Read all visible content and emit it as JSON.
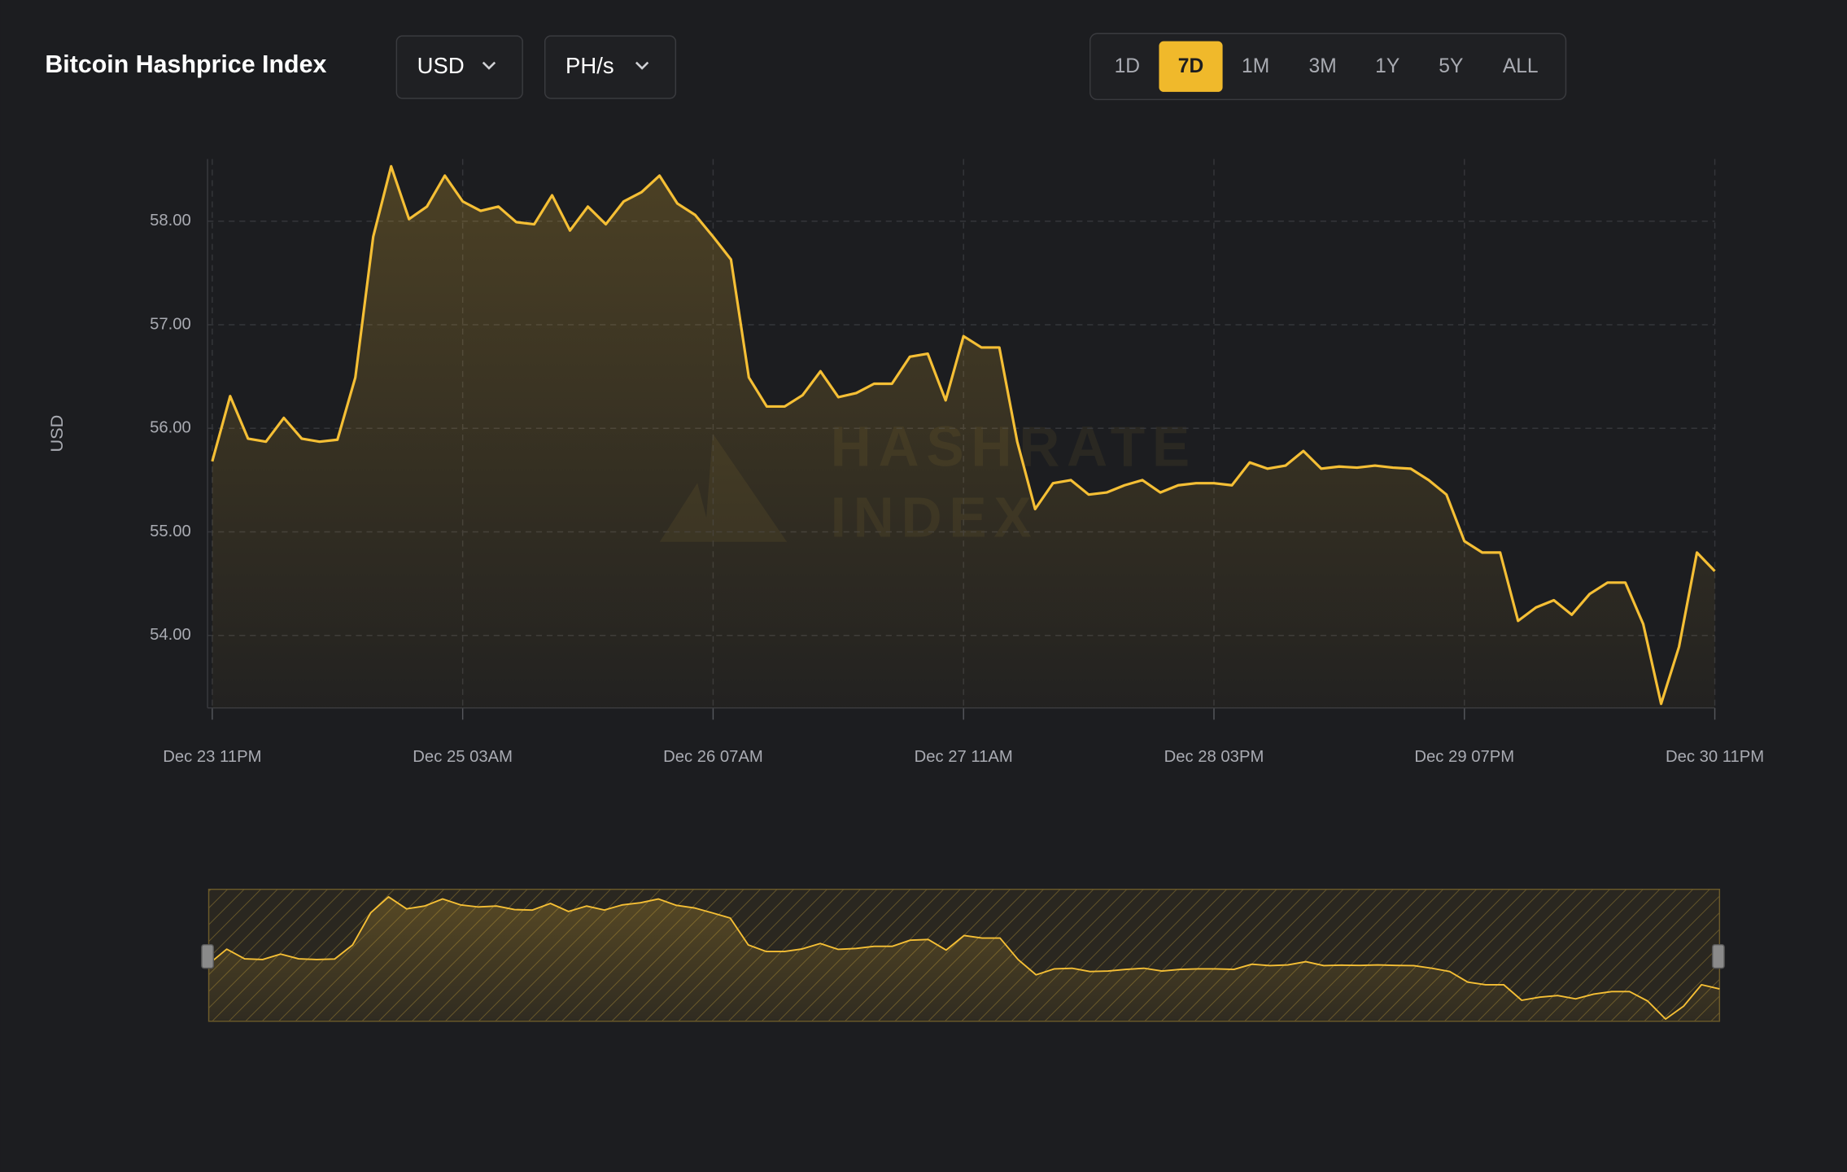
{
  "header": {
    "title": "Bitcoin Hashprice Index",
    "currency": "USD",
    "unit": "PH/s",
    "ranges": [
      "1D",
      "7D",
      "1M",
      "3M",
      "1Y",
      "5Y",
      "ALL"
    ],
    "active_range": "7D"
  },
  "chart_data": {
    "type": "line",
    "watermark": [
      "HASHRATE",
      "INDEX"
    ],
    "y_label": "USD",
    "x": [
      "Dec 23 11PM",
      "Dec 24 01AM",
      "Dec 24 03AM",
      "Dec 24 05AM",
      "Dec 24 07AM",
      "Dec 24 09AM",
      "Dec 24 11AM",
      "Dec 24 01PM",
      "Dec 24 03PM",
      "Dec 24 05PM",
      "Dec 24 07PM",
      "Dec 24 09PM",
      "Dec 24 11PM",
      "Dec 25 01AM",
      "Dec 25 03AM",
      "Dec 25 05AM",
      "Dec 25 07AM",
      "Dec 25 09AM",
      "Dec 25 11AM",
      "Dec 25 01PM",
      "Dec 25 03PM",
      "Dec 25 05PM",
      "Dec 25 07PM",
      "Dec 25 09PM",
      "Dec 25 11PM",
      "Dec 26 01AM",
      "Dec 26 03AM",
      "Dec 26 05AM",
      "Dec 26 07AM",
      "Dec 26 09AM",
      "Dec 26 11AM",
      "Dec 26 01PM",
      "Dec 26 03PM",
      "Dec 26 05PM",
      "Dec 26 07PM",
      "Dec 26 09PM",
      "Dec 26 11PM",
      "Dec 27 01AM",
      "Dec 27 03AM",
      "Dec 27 05AM",
      "Dec 27 07AM",
      "Dec 27 09AM",
      "Dec 27 11AM",
      "Dec 27 01PM",
      "Dec 27 03PM",
      "Dec 27 05PM",
      "Dec 27 07PM",
      "Dec 27 09PM",
      "Dec 27 11PM",
      "Dec 28 01AM",
      "Dec 28 03AM",
      "Dec 28 05AM",
      "Dec 28 07AM",
      "Dec 28 09AM",
      "Dec 28 11AM",
      "Dec 28 01PM",
      "Dec 28 03PM",
      "Dec 28 05PM",
      "Dec 28 07PM",
      "Dec 28 09PM",
      "Dec 28 11PM",
      "Dec 29 01AM",
      "Dec 29 03AM",
      "Dec 29 05AM",
      "Dec 29 07AM",
      "Dec 29 09AM",
      "Dec 29 11AM",
      "Dec 29 01PM",
      "Dec 29 03PM",
      "Dec 29 05PM",
      "Dec 29 07PM",
      "Dec 29 09PM",
      "Dec 29 11PM",
      "Dec 30 01AM",
      "Dec 30 03AM",
      "Dec 30 05AM",
      "Dec 30 07AM",
      "Dec 30 09AM",
      "Dec 30 11AM",
      "Dec 30 01PM",
      "Dec 30 03PM",
      "Dec 30 05PM",
      "Dec 30 07PM",
      "Dec 30 09PM",
      "Dec 30 11PM"
    ],
    "series": [
      {
        "color": "#f5bf35",
        "values": [
          55.68,
          56.31,
          55.9,
          55.87,
          56.1,
          55.9,
          55.87,
          55.89,
          56.49,
          57.85,
          58.53,
          58.02,
          58.14,
          58.44,
          58.19,
          58.1,
          58.14,
          57.99,
          57.97,
          58.25,
          57.91,
          58.14,
          57.97,
          58.19,
          58.28,
          58.44,
          58.17,
          58.06,
          57.85,
          57.63,
          56.49,
          56.21,
          56.21,
          56.32,
          56.55,
          56.3,
          56.34,
          56.43,
          56.43,
          56.69,
          56.72,
          56.27,
          56.89,
          56.78,
          56.78,
          55.87,
          55.22,
          55.47,
          55.5,
          55.36,
          55.38,
          55.45,
          55.5,
          55.38,
          55.45,
          55.47,
          55.47,
          55.45,
          55.67,
          55.61,
          55.64,
          55.78,
          55.61,
          55.63,
          55.62,
          55.64,
          55.62,
          55.61,
          55.5,
          55.36,
          54.91,
          54.8,
          54.8,
          54.14,
          54.27,
          54.34,
          54.2,
          54.4,
          54.51,
          54.51,
          54.11,
          53.34,
          53.89,
          54.8,
          54.62
        ]
      }
    ],
    "ylim": [
      53.3,
      58.6
    ],
    "yticks": [
      {
        "value": 54,
        "label": "54.00"
      },
      {
        "value": 55,
        "label": "55.00"
      },
      {
        "value": 56,
        "label": "56.00"
      },
      {
        "value": 57,
        "label": "57.00"
      },
      {
        "value": 58,
        "label": "58.00"
      }
    ],
    "xticks": [
      "Dec 23 11PM",
      "Dec 25 03AM",
      "Dec 26 07AM",
      "Dec 27 11AM",
      "Dec 28 03PM",
      "Dec 29 07PM",
      "Dec 30 11PM"
    ],
    "grid": true
  }
}
